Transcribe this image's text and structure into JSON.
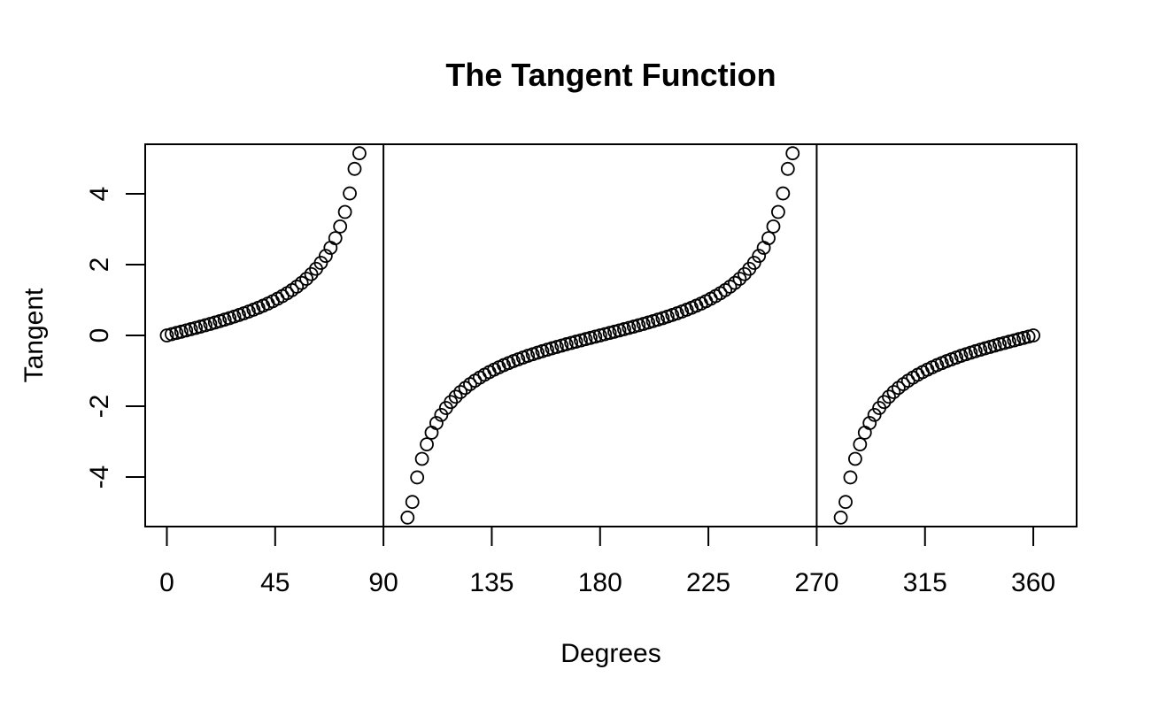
{
  "chart_data": {
    "type": "scatter",
    "title": "The Tangent Function",
    "xlabel": "Degrees",
    "ylabel": "Tangent",
    "xlim": [
      -9,
      378
    ],
    "ylim": [
      -5.4,
      5.4
    ],
    "x_ticks": [
      0,
      45,
      90,
      135,
      180,
      225,
      270,
      315,
      360
    ],
    "x_tick_labels": [
      "0",
      "45",
      "90",
      "135",
      "180",
      "225",
      "270",
      "315",
      "360"
    ],
    "y_ticks": [
      -4,
      -2,
      0,
      2,
      4
    ],
    "y_tick_labels": [
      "-4",
      "-2",
      "0",
      "2",
      "4"
    ],
    "vertical_lines": [
      90,
      270
    ],
    "grid": false,
    "legend": "none",
    "marker": "open-circle",
    "series": [
      {
        "x": [
          0,
          2,
          4,
          6,
          8,
          10,
          12,
          14,
          16,
          18,
          20,
          22,
          24,
          26,
          28,
          30,
          32,
          34,
          36,
          38,
          40,
          42,
          44,
          46,
          48,
          50,
          52,
          54,
          56,
          58,
          60,
          62,
          64,
          66,
          68,
          70,
          72,
          74,
          76,
          78,
          80,
          82,
          84,
          86,
          88,
          90,
          92,
          94,
          96,
          98,
          100,
          102,
          104,
          106,
          108,
          110,
          112,
          114,
          116,
          118,
          120,
          122,
          124,
          126,
          128,
          130,
          132,
          134,
          136,
          138,
          140,
          142,
          144,
          146,
          148,
          150,
          152,
          154,
          156,
          158,
          160,
          162,
          164,
          166,
          168,
          170,
          172,
          174,
          176,
          178,
          180,
          182,
          184,
          186,
          188,
          190,
          192,
          194,
          196,
          198,
          200,
          202,
          204,
          206,
          208,
          210,
          212,
          214,
          216,
          218,
          220,
          222,
          224,
          226,
          228,
          230,
          232,
          234,
          236,
          238,
          240,
          242,
          244,
          246,
          248,
          250,
          252,
          254,
          256,
          258,
          260,
          262,
          264,
          266,
          268,
          270,
          272,
          274,
          276,
          278,
          280,
          282,
          284,
          286,
          288,
          290,
          292,
          294,
          296,
          298,
          300,
          302,
          304,
          306,
          308,
          310,
          312,
          314,
          316,
          318,
          320,
          322,
          324,
          326,
          328,
          330,
          332,
          334,
          336,
          338,
          340,
          342,
          344,
          346,
          348,
          350,
          352,
          354,
          356,
          358,
          360
        ],
        "y": [
          0,
          0.035,
          0.07,
          0.105,
          0.141,
          0.176,
          0.213,
          0.249,
          0.287,
          0.325,
          0.364,
          0.404,
          0.445,
          0.488,
          0.532,
          0.577,
          0.625,
          0.675,
          0.727,
          0.781,
          0.839,
          0.9,
          0.966,
          1.036,
          1.111,
          1.192,
          1.28,
          1.376,
          1.483,
          1.6,
          1.732,
          1.881,
          2.05,
          2.246,
          2.475,
          2.747,
          3.078,
          3.487,
          4.011,
          4.705,
          5.145,
          null,
          null,
          null,
          null,
          null,
          null,
          null,
          null,
          null,
          -5.145,
          -4.705,
          -4.011,
          -3.487,
          -3.078,
          -2.747,
          -2.475,
          -2.246,
          -2.05,
          -1.881,
          -1.732,
          -1.6,
          -1.483,
          -1.376,
          -1.28,
          -1.192,
          -1.111,
          -1.036,
          -0.966,
          -0.9,
          -0.839,
          -0.781,
          -0.727,
          -0.675,
          -0.625,
          -0.577,
          -0.532,
          -0.488,
          -0.445,
          -0.404,
          -0.364,
          -0.325,
          -0.287,
          -0.249,
          -0.213,
          -0.176,
          -0.141,
          -0.105,
          -0.07,
          -0.035,
          0,
          0.035,
          0.07,
          0.105,
          0.141,
          0.176,
          0.213,
          0.249,
          0.287,
          0.325,
          0.364,
          0.404,
          0.445,
          0.488,
          0.532,
          0.577,
          0.625,
          0.675,
          0.727,
          0.781,
          0.839,
          0.9,
          0.966,
          1.036,
          1.111,
          1.192,
          1.28,
          1.376,
          1.483,
          1.6,
          1.732,
          1.881,
          2.05,
          2.246,
          2.475,
          2.747,
          3.078,
          3.487,
          4.011,
          4.705,
          5.145,
          null,
          null,
          null,
          null,
          null,
          null,
          null,
          null,
          null,
          -5.145,
          -4.705,
          -4.011,
          -3.487,
          -3.078,
          -2.747,
          -2.475,
          -2.246,
          -2.05,
          -1.881,
          -1.732,
          -1.6,
          -1.483,
          -1.376,
          -1.28,
          -1.192,
          -1.111,
          -1.036,
          -0.966,
          -0.9,
          -0.839,
          -0.781,
          -0.727,
          -0.675,
          -0.625,
          -0.577,
          -0.532,
          -0.488,
          -0.445,
          -0.404,
          -0.364,
          -0.325,
          -0.287,
          -0.249,
          -0.213,
          -0.176,
          -0.141,
          -0.105,
          -0.07,
          -0.035,
          0
        ]
      }
    ]
  }
}
